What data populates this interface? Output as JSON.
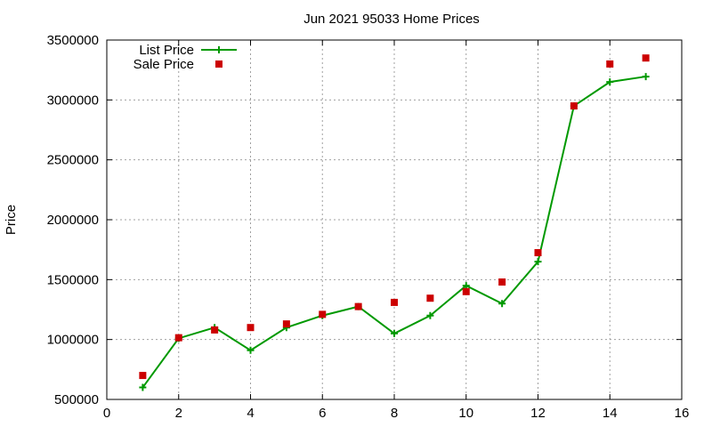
{
  "chart_data": {
    "type": "line",
    "title": "Jun 2021 95033 Home Prices",
    "xlabel": "",
    "ylabel": "Price",
    "xlim": [
      0,
      16
    ],
    "ylim": [
      500000,
      3500000
    ],
    "x_ticks": [
      0,
      2,
      4,
      6,
      8,
      10,
      12,
      14,
      16
    ],
    "y_ticks": [
      500000,
      1000000,
      1500000,
      2000000,
      2500000,
      3000000,
      3500000
    ],
    "grid": true,
    "legend_position": "top-left",
    "series": [
      {
        "name": "List Price",
        "style": "line-plus",
        "color": "#009900",
        "x": [
          1,
          2,
          3,
          4,
          5,
          6,
          7,
          8,
          9,
          10,
          11,
          12,
          13,
          14,
          15
        ],
        "y": [
          600000,
          1010000,
          1100000,
          910000,
          1100000,
          1200000,
          1275000,
          1050000,
          1200000,
          1450000,
          1300000,
          1650000,
          2950000,
          3150000,
          3195000
        ]
      },
      {
        "name": "Sale Price",
        "style": "square",
        "color": "#cc0000",
        "x": [
          1,
          2,
          3,
          4,
          5,
          6,
          7,
          8,
          9,
          10,
          11,
          12,
          13,
          14,
          15
        ],
        "y": [
          700000,
          1015000,
          1080000,
          1100000,
          1130000,
          1210000,
          1275000,
          1310000,
          1345000,
          1400000,
          1480000,
          1725000,
          2950000,
          3300000,
          3350000
        ]
      }
    ]
  }
}
